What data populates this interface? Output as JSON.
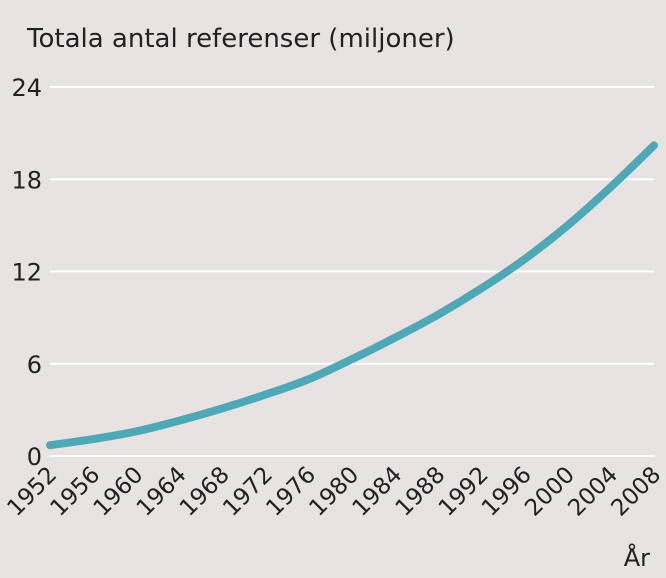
{
  "chart_data": {
    "type": "line",
    "title": "Totala antal referenser (miljoner)",
    "xlabel": "År",
    "ylabel": "",
    "ylim": [
      0,
      24
    ],
    "xlim": [
      1952,
      2008
    ],
    "yticks": [
      0,
      6,
      12,
      18,
      24
    ],
    "xticks": [
      "1952",
      "1956",
      "1960",
      "1964",
      "1968",
      "1972",
      "1976",
      "1980",
      "1984",
      "1988",
      "1992",
      "1996",
      "2000",
      "2004",
      "2008"
    ],
    "grid": true,
    "x": [
      1952,
      1956,
      1960,
      1964,
      1968,
      1972,
      1976,
      1980,
      1984,
      1988,
      1992,
      1996,
      2000,
      2004,
      2008
    ],
    "values": [
      0.7,
      1.1,
      1.6,
      2.3,
      3.1,
      4.0,
      5.0,
      6.3,
      7.7,
      9.2,
      10.9,
      12.8,
      15.0,
      17.5,
      20.2
    ]
  },
  "colors": {
    "background": "#e8e3e3",
    "line": "#4fa8b6",
    "grid": "#ffffff",
    "text": "#222222"
  }
}
